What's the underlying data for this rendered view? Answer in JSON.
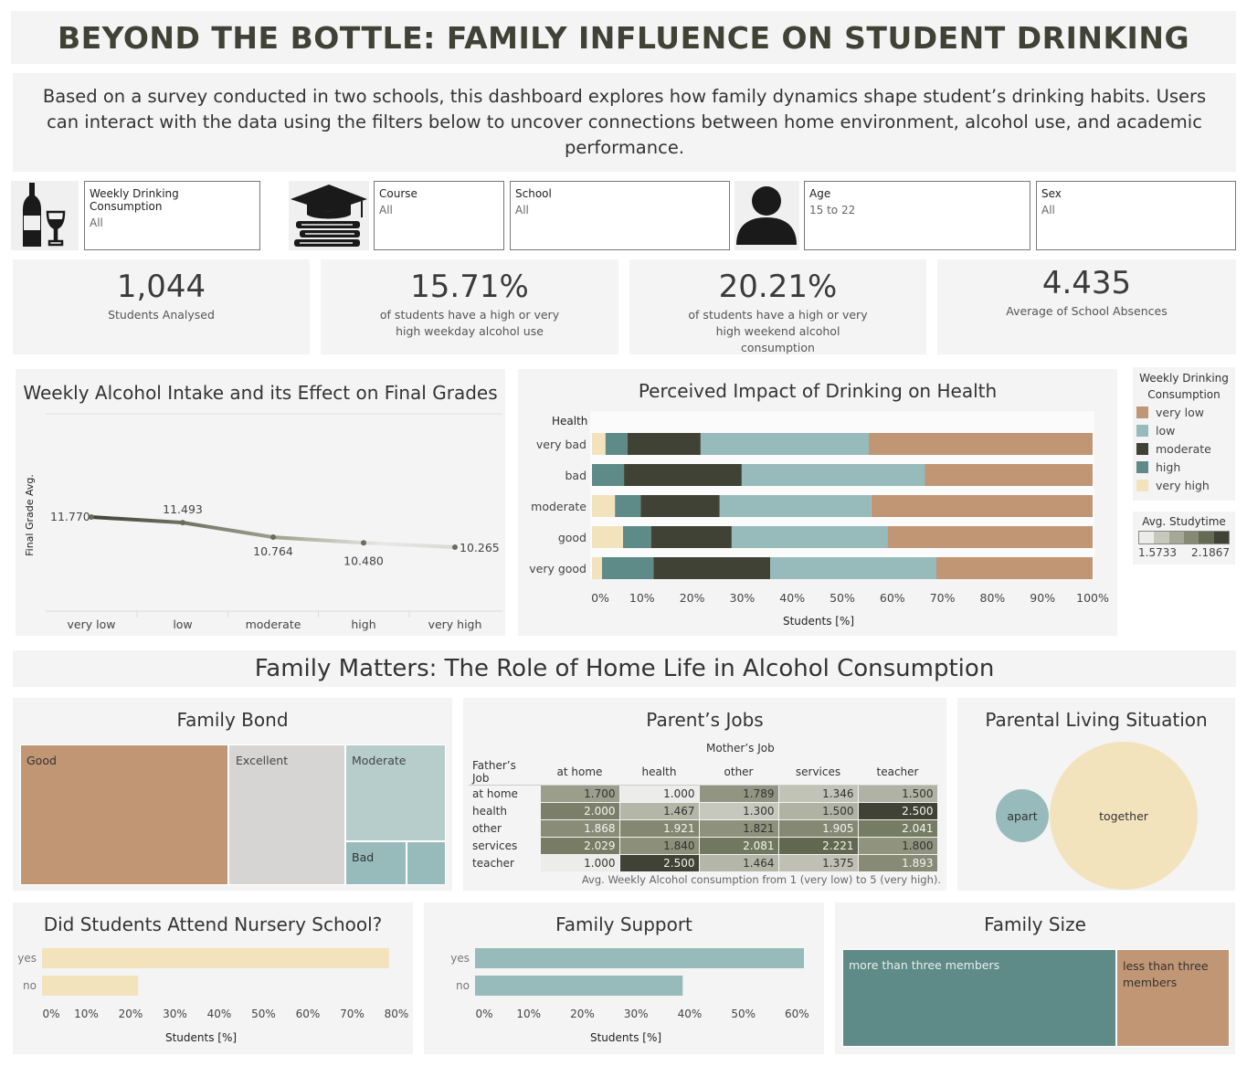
{
  "header": {
    "title": "BEYOND THE BOTTLE: FAMILY INFLUENCE ON STUDENT DRINKING",
    "description": "Based on a survey conducted in two schools, this dashboard explores how family dynamics shape student’s drinking habits. Users can interact with the data using the filters below to uncover connections between home environment, alcohol use, and academic performance."
  },
  "filters": [
    {
      "label": "Weekly Drinking Consumption",
      "value": "All"
    },
    {
      "label": "Course",
      "value": "All"
    },
    {
      "label": "School",
      "value": "All"
    },
    {
      "label": "Age",
      "value": "15 to 22"
    },
    {
      "label": "Sex",
      "value": "All"
    }
  ],
  "icons": {
    "drinks": "wine-bottle-glass-icon",
    "course": "graduation-cap-books-icon",
    "person": "person-icon"
  },
  "kpis": [
    {
      "value": "1,044",
      "sub": "Students Analysed"
    },
    {
      "value": "15.71%",
      "sub": "of students have a  high or very high weekday alcohol use"
    },
    {
      "value": "20.21%",
      "sub": "of students have a high or very high weekend alcohol consumption"
    },
    {
      "value": "4.435",
      "sub": "Average of School Absences"
    }
  ],
  "colors": {
    "very_low": "#c09674",
    "low": "#97bbba",
    "moderate": "#3f4234",
    "high": "#5e8b87",
    "very_high": "#f3e3bd",
    "accent": "#3f4234"
  },
  "chart_data": [
    {
      "id": "grades",
      "type": "line",
      "title": "Weekly Alcohol Intake and its Effect on Final Grades",
      "ylabel": "Final Grade Avg.",
      "categories": [
        "very low",
        "low",
        "moderate",
        "high",
        "very high"
      ],
      "values": [
        11.77,
        11.493,
        10.764,
        10.48,
        10.265
      ],
      "labels": [
        "11.770",
        "11.493",
        "10.764",
        "10.480",
        "10.265"
      ]
    },
    {
      "id": "health",
      "type": "bar",
      "stacked": true,
      "title": "Perceived Impact of Drinking on Health",
      "ylabel": "Health",
      "xlabel": "Students [%]",
      "categories": [
        "very bad",
        "bad",
        "moderate",
        "good",
        "very good"
      ],
      "xticks": [
        "0%",
        "10%",
        "20%",
        "30%",
        "40%",
        "50%",
        "60%",
        "70%",
        "80%",
        "90%",
        "100%"
      ],
      "xlim": [
        0,
        100
      ],
      "series": [
        {
          "name": "very high",
          "values": [
            2.7,
            0,
            4.6,
            6.2,
            2.0
          ]
        },
        {
          "name": "high",
          "values": [
            4.4,
            6.4,
            5.1,
            5.6,
            10.3
          ]
        },
        {
          "name": "moderate",
          "values": [
            14.6,
            23.5,
            15.8,
            16.1,
            23.3
          ]
        },
        {
          "name": "low",
          "values": [
            33.6,
            36.6,
            30.3,
            31.1,
            33.2
          ]
        },
        {
          "name": "very low",
          "values": [
            44.7,
            33.5,
            44.2,
            41.0,
            31.2
          ]
        }
      ]
    },
    {
      "id": "nursery",
      "type": "bar",
      "title": "Did Students Attend Nursery School?",
      "categories": [
        "yes",
        "no"
      ],
      "values": [
        78.3,
        21.7
      ],
      "xticks": [
        "0%",
        "10%",
        "20%",
        "30%",
        "40%",
        "50%",
        "60%",
        "70%",
        "80%"
      ],
      "xlim": [
        0,
        80
      ],
      "xlabel": "Students [%]"
    },
    {
      "id": "famsup",
      "type": "bar",
      "title": "Family Support",
      "categories": [
        "yes",
        "no"
      ],
      "values": [
        61.3,
        38.7
      ],
      "xticks": [
        "0%",
        "10%",
        "20%",
        "30%",
        "40%",
        "50%",
        "60%"
      ],
      "xlim": [
        0,
        63
      ],
      "xlabel": "Students [%]"
    },
    {
      "id": "parentjobs",
      "type": "heatmap",
      "title": "Parent’s Jobs",
      "col_title": "Mother’s Job",
      "row_title": "Father’s Job",
      "cols": [
        "at home",
        "health",
        "other",
        "services",
        "teacher"
      ],
      "rows": [
        "at home",
        "health",
        "other",
        "services",
        "teacher"
      ],
      "values": [
        [
          1.7,
          1.0,
          1.789,
          1.346,
          1.5
        ],
        [
          2.0,
          1.467,
          1.3,
          1.5,
          2.5
        ],
        [
          1.868,
          1.921,
          1.821,
          1.905,
          2.041
        ],
        [
          2.029,
          1.84,
          2.081,
          2.221,
          1.8
        ],
        [
          1.0,
          2.5,
          1.464,
          1.375,
          1.893
        ]
      ],
      "labels": [
        [
          "1.700",
          "1.000",
          "1.789",
          "1.346",
          "1.500"
        ],
        [
          "2.000",
          "1.467",
          "1.300",
          "1.500",
          "2.500"
        ],
        [
          "1.868",
          "1.921",
          "1.821",
          "1.905",
          "2.041"
        ],
        [
          "2.029",
          "1.840",
          "2.081",
          "2.221",
          "1.800"
        ],
        [
          "1.000",
          "2.500",
          "1.464",
          "1.375",
          "1.893"
        ]
      ],
      "note": "Avg. Weekly Alcohol consumption from 1 (very low) to 5 (very high)."
    }
  ],
  "legends": {
    "consumption_title": "Weekly Drinking Consumption",
    "consumption_items": [
      "very low",
      "low",
      "moderate",
      "high",
      "very high"
    ],
    "studytime_title": "Avg. Studytime",
    "studytime_min": "1.5733",
    "studytime_max": "2.1867"
  },
  "section2_title": "Family Matters: The Role of Home Life in Alcohol Consumption",
  "family_bond": {
    "title": "Family Bond",
    "items": [
      {
        "label": "Good",
        "value": 49.5
      },
      {
        "label": "Excellent",
        "value": 27.0
      },
      {
        "label": "Moderate",
        "value": 16.0
      },
      {
        "label": "Bad",
        "value": 4.5
      },
      {
        "label": "",
        "value": 3.0
      }
    ]
  },
  "living": {
    "title": "Parental Living Situation",
    "apart": "apart",
    "together": "together",
    "apart_value": 11,
    "together_value": 89
  },
  "family_size": {
    "title": "Family Size",
    "items": [
      {
        "label": "more than three members",
        "value": 70.8
      },
      {
        "label": "less than three members",
        "value": 29.2
      }
    ]
  }
}
